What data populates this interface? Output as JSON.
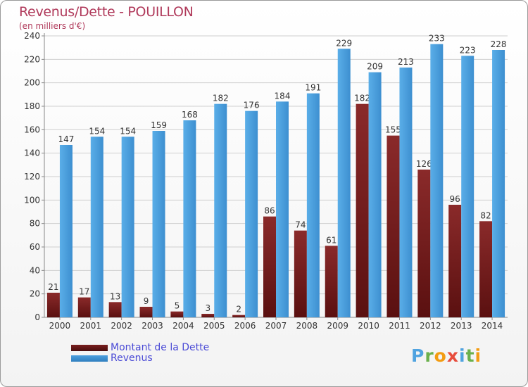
{
  "header": {
    "title": "Revenus/Dette - POUILLON",
    "subtitle": "(en milliers d'€)"
  },
  "colors": {
    "debt": "#7a1f1f",
    "revenue": "#4d9fdd",
    "grid": "#cfcfcf",
    "axis_text": "#333333"
  },
  "legend": {
    "debt_label": "Montant de la Dette",
    "revenue_label": "Revenus"
  },
  "logo": {
    "letters": [
      "P",
      "r",
      "o",
      "x",
      "i",
      "t",
      "i"
    ],
    "colors": [
      "#4fa3e0",
      "#6ab04c",
      "#f39c12",
      "#e74c3c",
      "#4fa3e0",
      "#6ab04c",
      "#f39c12"
    ]
  },
  "chart_data": {
    "type": "bar",
    "title": "Revenus/Dette - POUILLON",
    "subtitle": "(en milliers d'€)",
    "categories": [
      "2000",
      "2001",
      "2002",
      "2003",
      "2004",
      "2005",
      "2006",
      "2007",
      "2008",
      "2009",
      "2010",
      "2011",
      "2012",
      "2013",
      "2014"
    ],
    "series": [
      {
        "name": "Montant de la Dette",
        "values": [
          21,
          17,
          13,
          9,
          5,
          3,
          2,
          86,
          74,
          61,
          182,
          155,
          126,
          96,
          82
        ]
      },
      {
        "name": "Revenus",
        "values": [
          147,
          154,
          154,
          159,
          168,
          182,
          176,
          184,
          191,
          229,
          209,
          213,
          233,
          223,
          228
        ]
      }
    ],
    "ylim": [
      0,
      240
    ],
    "yticks": [
      0,
      20,
      40,
      60,
      80,
      100,
      120,
      140,
      160,
      180,
      200,
      220,
      240
    ],
    "grid": true,
    "legend_position": "bottom-left"
  }
}
